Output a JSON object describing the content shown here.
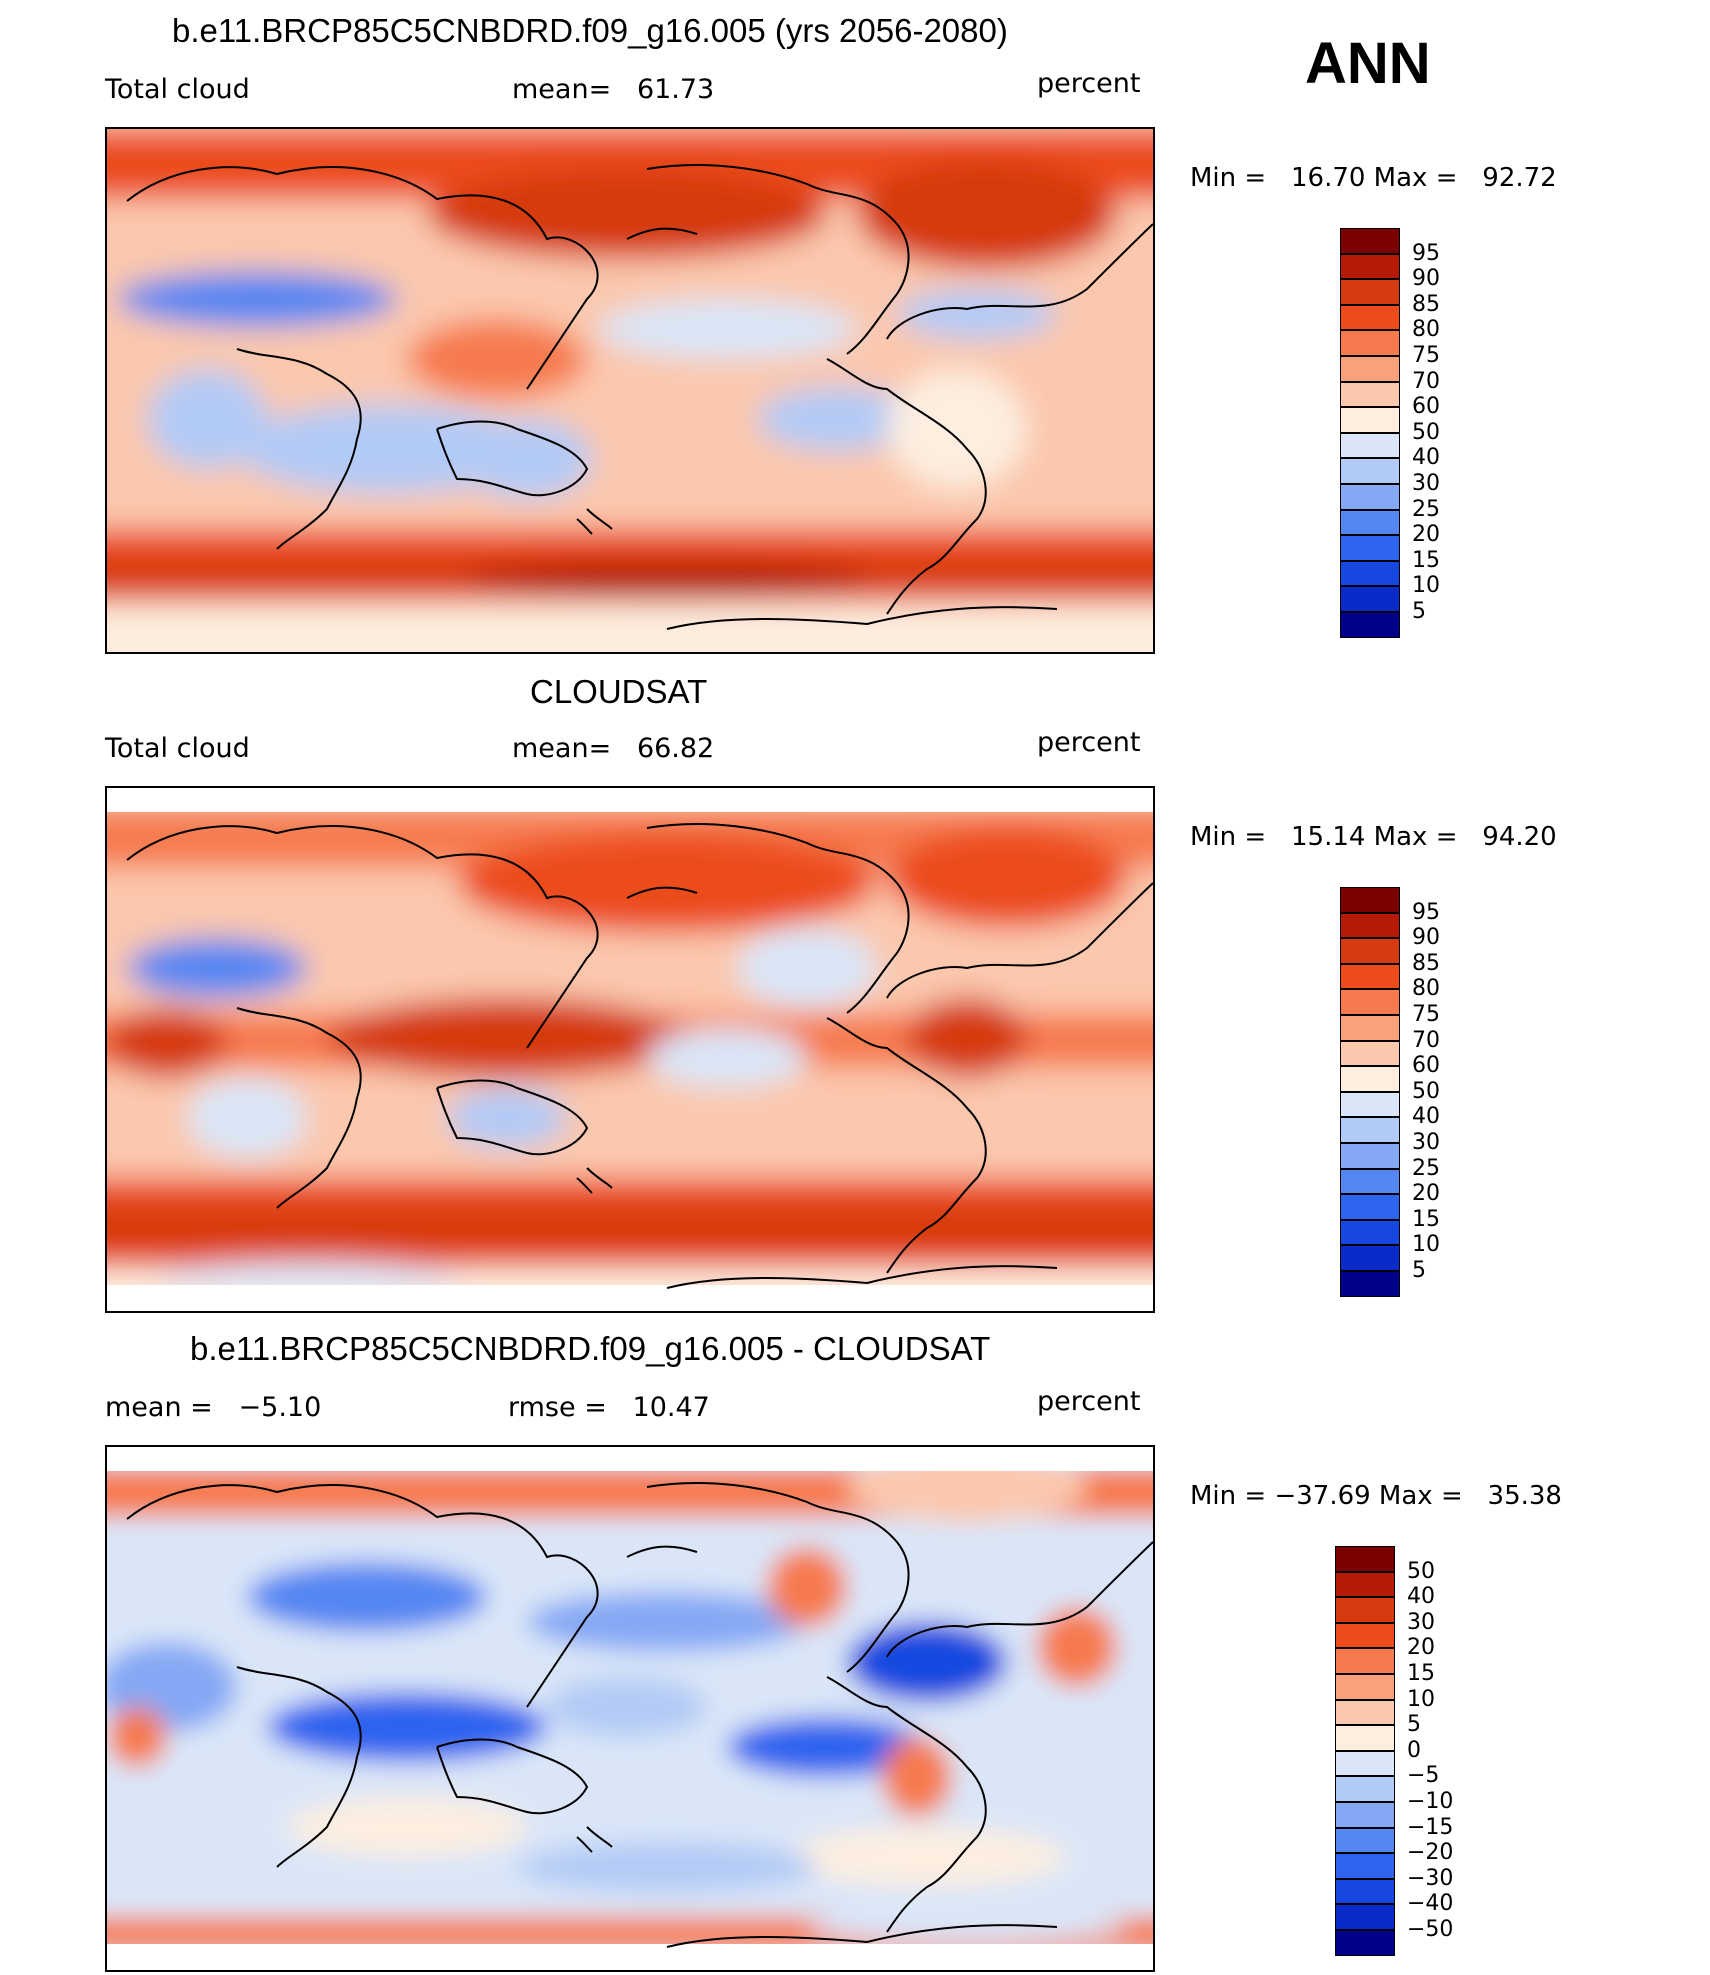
{
  "season": "ANN",
  "colors": {
    "abs_scale": [
      "#00008a",
      "#0a2bc8",
      "#1648e0",
      "#2f64ef",
      "#5586f2",
      "#84a8f4",
      "#b2caf6",
      "#dae6f8",
      "#fdeee0",
      "#fbc8ad",
      "#f9a07c",
      "#f67a4e",
      "#ec4c1c",
      "#d63a10",
      "#b41a05",
      "#7a0000"
    ],
    "diff_scale": [
      "#00008a",
      "#0a2bc8",
      "#1648e0",
      "#2f64ef",
      "#5586f2",
      "#84a8f4",
      "#b2caf6",
      "#dae6f8",
      "#fdeee0",
      "#fbc8ad",
      "#f9a07c",
      "#f67a4e",
      "#ec4c1c",
      "#d63a10",
      "#b41a05",
      "#7a0000"
    ]
  },
  "panels": [
    {
      "title": "b.e11.BRCP85C5CNBDRD.f09_g16.005 (yrs 2056-2080)",
      "left_label": "Total cloud",
      "center_label": "mean=   61.73",
      "right_label": "percent",
      "min_max": "Min =   16.70 Max =   92.72",
      "colorbar_labels": [
        "95",
        "90",
        "85",
        "80",
        "75",
        "70",
        "60",
        "50",
        "40",
        "30",
        "25",
        "20",
        "15",
        "10",
        "5"
      ]
    },
    {
      "title": "CLOUDSAT",
      "left_label": "Total cloud",
      "center_label": "mean=   66.82",
      "right_label": "percent",
      "min_max": "Min =   15.14 Max =   94.20",
      "colorbar_labels": [
        "95",
        "90",
        "85",
        "80",
        "75",
        "70",
        "60",
        "50",
        "40",
        "30",
        "25",
        "20",
        "15",
        "10",
        "5"
      ]
    },
    {
      "title": "b.e11.BRCP85C5CNBDRD.f09_g16.005 - CLOUDSAT",
      "left_label": "mean =   −5.10",
      "center_label": "rmse =   10.47",
      "right_label": "percent",
      "min_max": "Min = −37.69 Max =   35.38",
      "colorbar_labels": [
        "50",
        "40",
        "30",
        "20",
        "15",
        "10",
        "5",
        "0",
        "−5",
        "−10",
        "−15",
        "−20",
        "−30",
        "−40",
        "−50"
      ]
    }
  ]
}
